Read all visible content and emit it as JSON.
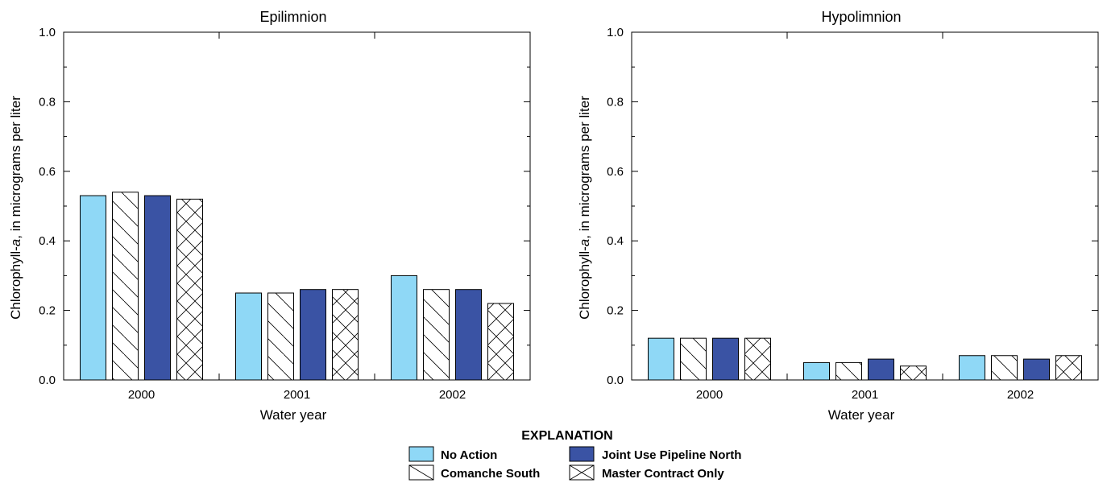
{
  "chart_data": [
    {
      "type": "bar",
      "title": "Epilimnion",
      "xlabel": "Water year",
      "ylabel_prefix": "Chlorophyll-",
      "ylabel_italic": "a",
      "ylabel_suffix": ", in  micrograms per liter",
      "ylim": [
        0,
        1.0
      ],
      "yticks": [
        "0.0",
        "0.2",
        "0.4",
        "0.6",
        "0.8",
        "1.0"
      ],
      "categories": [
        "2000",
        "2001",
        "2002"
      ],
      "series": [
        {
          "name": "No Action",
          "values": [
            0.53,
            0.25,
            0.3
          ]
        },
        {
          "name": "Comanche South",
          "values": [
            0.54,
            0.25,
            0.26
          ]
        },
        {
          "name": "Joint Use Pipeline North",
          "values": [
            0.53,
            0.26,
            0.26
          ]
        },
        {
          "name": "Master Contract Only",
          "values": [
            0.52,
            0.26,
            0.22
          ]
        }
      ]
    },
    {
      "type": "bar",
      "title": "Hypolimnion",
      "xlabel": "Water year",
      "ylabel_prefix": "Chlorophyll-",
      "ylabel_italic": "a",
      "ylabel_suffix": ", in  micrograms per liter",
      "ylim": [
        0,
        1.0
      ],
      "yticks": [
        "0.0",
        "0.2",
        "0.4",
        "0.6",
        "0.8",
        "1.0"
      ],
      "categories": [
        "2000",
        "2001",
        "2002"
      ],
      "series": [
        {
          "name": "No Action",
          "values": [
            0.12,
            0.05,
            0.07
          ]
        },
        {
          "name": "Comanche South",
          "values": [
            0.12,
            0.05,
            0.07
          ]
        },
        {
          "name": "Joint Use Pipeline North",
          "values": [
            0.12,
            0.06,
            0.06
          ]
        },
        {
          "name": "Master Contract Only",
          "values": [
            0.12,
            0.04,
            0.07
          ]
        }
      ]
    }
  ],
  "legend": {
    "title": "EXPLANATION",
    "items": [
      "No Action",
      "Joint Use Pipeline North",
      "Comanche South",
      "Master Contract Only"
    ]
  },
  "styles": {
    "No Action": {
      "fill": "#8fd8f6",
      "pattern": "none"
    },
    "Comanche South": {
      "fill": "#ffffff",
      "pattern": "diag"
    },
    "Joint Use Pipeline North": {
      "fill": "#3a53a4",
      "pattern": "none"
    },
    "Master Contract Only": {
      "fill": "#ffffff",
      "pattern": "cross"
    }
  }
}
